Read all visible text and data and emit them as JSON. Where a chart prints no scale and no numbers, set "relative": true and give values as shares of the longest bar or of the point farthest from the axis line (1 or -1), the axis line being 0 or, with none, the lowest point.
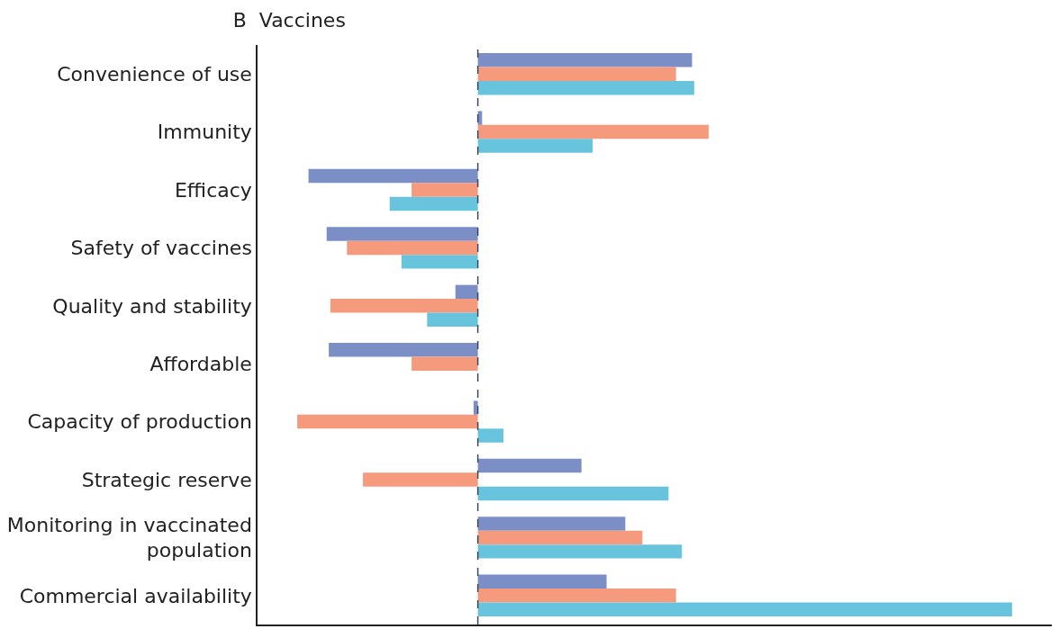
{
  "chart_data": {
    "type": "bar",
    "orientation": "horizontal",
    "relative": true,
    "title": "B  Vaccines",
    "categories": [
      "Convenience of use",
      "Immunity",
      "Efficacy",
      "Safety of vaccines",
      "Quality and stability",
      "Affordable",
      "Capacity of production",
      "Strategic reserve",
      "Monitoring in vaccinated population",
      "Commercial availability"
    ],
    "series": [
      {
        "color": "#7b8fc6",
        "values": [
          0.401,
          0.008,
          -0.317,
          -0.283,
          -0.042,
          -0.279,
          -0.008,
          0.194,
          0.276,
          0.241
        ]
      },
      {
        "color": "#f59a7c",
        "values": [
          0.371,
          0.432,
          -0.124,
          -0.245,
          -0.276,
          -0.124,
          -0.338,
          -0.215,
          0.308,
          0.371
        ]
      },
      {
        "color": "#68c4dc",
        "values": [
          0.405,
          0.215,
          -0.165,
          -0.143,
          -0.095,
          null,
          0.048,
          0.357,
          0.382,
          1.0
        ]
      }
    ],
    "ref_lines": [
      {
        "axis": "x",
        "value": 0,
        "line_style": "dashed",
        "color": "#3a4a5c"
      }
    ]
  }
}
